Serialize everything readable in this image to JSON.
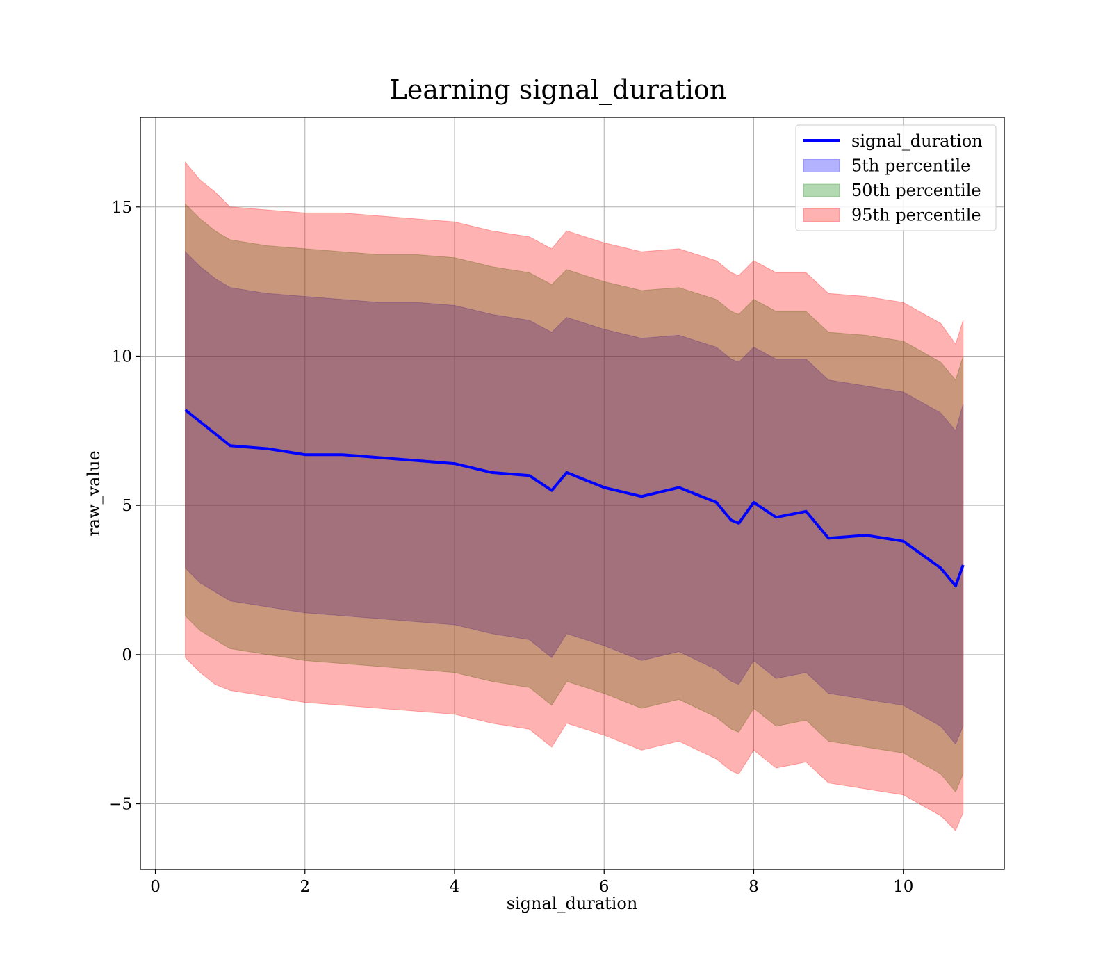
{
  "chart_data": {
    "type": "area",
    "title": "Learning signal_duration",
    "xlabel": "signal_duration",
    "ylabel": "raw_value",
    "xlim": [
      -0.2,
      11.35
    ],
    "ylim": [
      -7.2,
      18
    ],
    "xticks": [
      0,
      2,
      4,
      6,
      8,
      10
    ],
    "yticks": [
      -5,
      0,
      5,
      10,
      15
    ],
    "xtick_labels": [
      "0",
      "2",
      "4",
      "6",
      "8",
      "10"
    ],
    "ytick_labels": [
      "−5",
      "0",
      "5",
      "10",
      "15"
    ],
    "grid": true,
    "legend_position": "top-right",
    "x": [
      0.4,
      0.6,
      0.8,
      1.0,
      1.5,
      2.0,
      2.5,
      3.0,
      3.5,
      4.0,
      4.5,
      5.0,
      5.3,
      5.5,
      6.0,
      6.5,
      7.0,
      7.5,
      7.7,
      7.8,
      8.0,
      8.3,
      8.7,
      9.0,
      9.5,
      10.0,
      10.5,
      10.7,
      10.8
    ],
    "series": [
      {
        "name": "signal_duration",
        "kind": "line",
        "color": "#0000ff",
        "values": [
          8.2,
          7.8,
          7.4,
          7.0,
          6.9,
          6.7,
          6.7,
          6.6,
          6.5,
          6.4,
          6.1,
          6.0,
          5.5,
          6.1,
          5.6,
          5.3,
          5.6,
          5.1,
          4.5,
          4.4,
          5.1,
          4.6,
          4.8,
          3.9,
          4.0,
          3.8,
          2.9,
          2.3,
          3.0
        ]
      },
      {
        "name": "5th percentile",
        "kind": "band",
        "color": "#0000ff",
        "upper": [
          13.5,
          13.0,
          12.6,
          12.3,
          12.1,
          12.0,
          11.9,
          11.8,
          11.8,
          11.7,
          11.4,
          11.2,
          10.8,
          11.3,
          10.9,
          10.6,
          10.7,
          10.3,
          9.9,
          9.8,
          10.3,
          9.9,
          9.9,
          9.2,
          9.0,
          8.8,
          8.1,
          7.5,
          8.4
        ],
        "lower": [
          2.9,
          2.4,
          2.1,
          1.8,
          1.6,
          1.4,
          1.3,
          1.2,
          1.1,
          1.0,
          0.7,
          0.5,
          -0.1,
          0.7,
          0.3,
          -0.2,
          0.1,
          -0.5,
          -0.9,
          -1.0,
          -0.2,
          -0.8,
          -0.6,
          -1.3,
          -1.5,
          -1.7,
          -2.4,
          -3.0,
          -2.4
        ]
      },
      {
        "name": "50th percentile",
        "kind": "band",
        "color": "#008000",
        "upper": [
          15.1,
          14.6,
          14.2,
          13.9,
          13.7,
          13.6,
          13.5,
          13.4,
          13.4,
          13.3,
          13.0,
          12.8,
          12.4,
          12.9,
          12.5,
          12.2,
          12.3,
          11.9,
          11.5,
          11.4,
          11.9,
          11.5,
          11.5,
          10.8,
          10.7,
          10.5,
          9.8,
          9.2,
          10.0
        ],
        "lower": [
          1.3,
          0.8,
          0.5,
          0.2,
          0.0,
          -0.2,
          -0.3,
          -0.4,
          -0.5,
          -0.6,
          -0.9,
          -1.1,
          -1.7,
          -0.9,
          -1.3,
          -1.8,
          -1.5,
          -2.1,
          -2.5,
          -2.6,
          -1.8,
          -2.4,
          -2.2,
          -2.9,
          -3.1,
          -3.3,
          -4.0,
          -4.6,
          -4.0
        ]
      },
      {
        "name": "95th percentile",
        "kind": "band",
        "color": "#ff0000",
        "upper": [
          16.5,
          15.9,
          15.5,
          15.0,
          14.9,
          14.8,
          14.8,
          14.7,
          14.6,
          14.5,
          14.2,
          14.0,
          13.6,
          14.2,
          13.8,
          13.5,
          13.6,
          13.2,
          12.8,
          12.7,
          13.2,
          12.8,
          12.8,
          12.1,
          12.0,
          11.8,
          11.1,
          10.4,
          11.2
        ],
        "lower": [
          -0.1,
          -0.6,
          -1.0,
          -1.2,
          -1.4,
          -1.6,
          -1.7,
          -1.8,
          -1.9,
          -2.0,
          -2.3,
          -2.5,
          -3.1,
          -2.3,
          -2.7,
          -3.2,
          -2.9,
          -3.5,
          -3.9,
          -4.0,
          -3.2,
          -3.8,
          -3.6,
          -4.3,
          -4.5,
          -4.7,
          -5.4,
          -5.9,
          -5.3
        ]
      }
    ]
  }
}
